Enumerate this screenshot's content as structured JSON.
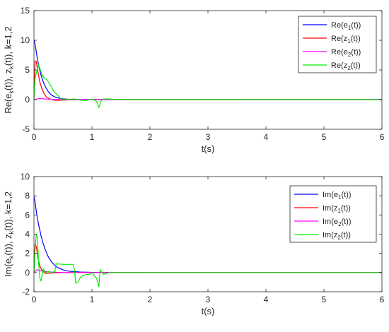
{
  "chart_data": [
    {
      "type": "line",
      "xlabel": "t(s)",
      "ylabel_parts": [
        "Re(e",
        "k",
        "(t)), z",
        "k",
        "(t)), k=1,2"
      ],
      "xlim": [
        0,
        6
      ],
      "ylim": [
        -5,
        15
      ],
      "xticks": [
        0,
        1,
        2,
        3,
        4,
        5,
        6
      ],
      "xtick_labels": [
        "0",
        "1",
        "2",
        "3",
        "4",
        "5",
        "6"
      ],
      "yticks": [
        -5,
        0,
        5,
        10,
        15
      ],
      "ytick_labels": [
        "-5",
        "0",
        "5",
        "10",
        "15"
      ],
      "grid": false,
      "legend_position": "top-right",
      "series": [
        {
          "name_parts": [
            "Re(e",
            "1",
            "(t))"
          ],
          "color": "#0000ff",
          "x": [
            0,
            0.01,
            0.02,
            0.05,
            0.08,
            0.12,
            0.16,
            0.2,
            0.25,
            0.3,
            0.35,
            0.4,
            0.5,
            0.6,
            0.8,
            1.0,
            1.5,
            2,
            3,
            4,
            5,
            6
          ],
          "y": [
            10,
            9.8,
            9.3,
            7.4,
            5.8,
            4.2,
            3.0,
            2.1,
            1.3,
            0.8,
            0.5,
            0.3,
            0.12,
            0.05,
            0.02,
            0.02,
            0.01,
            0.01,
            0.01,
            0,
            0,
            0
          ]
        },
        {
          "name_parts": [
            "Re(z",
            "1",
            "(t))"
          ],
          "color": "#ff0000",
          "x": [
            0,
            0.01,
            0.02,
            0.04,
            0.07,
            0.1,
            0.14,
            0.18,
            0.22,
            0.28,
            0.35,
            0.45,
            0.6,
            1.0,
            2,
            3,
            4,
            5,
            6
          ],
          "y": [
            0,
            3.5,
            6.5,
            6.4,
            4.6,
            3.0,
            1.8,
            0.9,
            0.4,
            0.1,
            -0.1,
            -0.1,
            -0.05,
            0,
            0,
            0,
            0,
            0,
            0
          ]
        },
        {
          "name_parts": [
            "Re(e",
            "2",
            "(t))"
          ],
          "color": "#ff00ff",
          "x": [
            0,
            0.05,
            0.1,
            0.2,
            0.3,
            0.5,
            1.0,
            2,
            3,
            4,
            5,
            6
          ],
          "y": [
            0,
            0.1,
            0.2,
            0.1,
            0.05,
            0,
            0,
            0,
            0,
            0,
            0,
            0
          ]
        },
        {
          "name_parts": [
            "Re(z",
            "2",
            "(t))"
          ],
          "color": "#00ee00",
          "x": [
            0,
            0.01,
            0.02,
            0.04,
            0.06,
            0.08,
            0.1,
            0.14,
            0.18,
            0.22,
            0.26,
            0.3,
            0.34,
            0.38,
            0.42,
            0.46,
            0.5,
            0.6,
            0.7,
            0.8,
            0.9,
            1.0,
            1.08,
            1.12,
            1.16,
            1.2,
            1.3,
            1.38,
            1.42,
            1.5,
            2,
            3,
            4,
            5,
            6
          ],
          "y": [
            0,
            2.0,
            3.6,
            4.4,
            5.2,
            5.8,
            5.3,
            4.2,
            3.6,
            3.4,
            2.8,
            2.2,
            1.4,
            1.0,
            0.6,
            0.2,
            0,
            0.05,
            0.1,
            -0.1,
            -0.15,
            0.1,
            -0.3,
            -1.3,
            -0.2,
            0.1,
            0.1,
            0,
            0.05,
            0,
            0,
            0,
            0,
            0,
            0
          ]
        }
      ]
    },
    {
      "type": "line",
      "xlabel": "t(s)",
      "ylabel_parts": [
        "Im(e",
        "k",
        "(t)), z",
        "k",
        "(t)), k=1,2"
      ],
      "xlim": [
        0,
        6
      ],
      "ylim": [
        -2,
        10
      ],
      "xticks": [
        0,
        1,
        2,
        3,
        4,
        5,
        6
      ],
      "xtick_labels": [
        "0",
        "1",
        "2",
        "3",
        "4",
        "5",
        "6"
      ],
      "yticks": [
        -2,
        0,
        2,
        4,
        6,
        8,
        10
      ],
      "ytick_labels": [
        "-2",
        "0",
        "2",
        "4",
        "6",
        "8",
        "10"
      ],
      "grid": false,
      "legend_position": "top-right",
      "series": [
        {
          "name_parts": [
            "Im(e",
            "1",
            "(t))"
          ],
          "color": "#0000ff",
          "x": [
            0,
            0.02,
            0.05,
            0.08,
            0.12,
            0.16,
            0.2,
            0.25,
            0.3,
            0.35,
            0.4,
            0.5,
            0.6,
            0.8,
            1.0,
            1.5,
            2,
            3,
            4,
            5,
            6
          ],
          "y": [
            8,
            7.3,
            6.0,
            5.0,
            3.9,
            3.0,
            2.3,
            1.6,
            1.15,
            0.8,
            0.55,
            0.28,
            0.14,
            0.05,
            0.02,
            0.01,
            0,
            0,
            0,
            0,
            0
          ]
        },
        {
          "name_parts": [
            "Im(z",
            "1",
            "(t))"
          ],
          "color": "#ff0000",
          "x": [
            0,
            0.01,
            0.02,
            0.04,
            0.07,
            0.1,
            0.14,
            0.2,
            0.3,
            0.5,
            1.0,
            2,
            3,
            4,
            5,
            6
          ],
          "y": [
            0,
            2.0,
            3.0,
            2.7,
            1.5,
            0.7,
            0.2,
            -0.1,
            -0.05,
            0,
            0,
            0,
            0,
            0,
            0,
            0
          ]
        },
        {
          "name_parts": [
            "Im(e",
            "2",
            "(t))"
          ],
          "color": "#ff00ff",
          "x": [
            0,
            0.05,
            0.1,
            0.2,
            0.3,
            0.5,
            1.0,
            2,
            3,
            4,
            5,
            6
          ],
          "y": [
            0,
            0.3,
            0.2,
            0.1,
            0.05,
            0,
            0,
            0,
            0,
            0,
            0,
            0
          ]
        },
        {
          "name_parts": [
            "Im(z",
            "2",
            "(t))"
          ],
          "color": "#00ee00",
          "x": [
            0,
            0.02,
            0.04,
            0.06,
            0.08,
            0.1,
            0.12,
            0.14,
            0.16,
            0.18,
            0.2,
            0.25,
            0.3,
            0.36,
            0.38,
            0.42,
            0.5,
            0.6,
            0.68,
            0.7,
            0.72,
            0.76,
            0.8,
            0.85,
            0.9,
            0.95,
            1.0,
            1.04,
            1.08,
            1.12,
            1.14,
            1.16,
            1.2,
            1.3,
            1.5,
            2,
            3,
            4,
            5,
            6
          ],
          "y": [
            0,
            2.5,
            4.0,
            3.7,
            1.0,
            -0.5,
            -0.9,
            -0.3,
            0.4,
            0.2,
            0,
            0.1,
            0,
            0.1,
            0.9,
            0.9,
            0.85,
            0.85,
            0.85,
            0.2,
            -1.1,
            -1.0,
            -0.5,
            -0.3,
            -0.2,
            -0.2,
            0,
            -0.3,
            -0.6,
            -1.5,
            0.3,
            0.1,
            -0.2,
            0,
            0,
            0,
            0,
            0,
            0,
            0
          ]
        }
      ]
    }
  ]
}
